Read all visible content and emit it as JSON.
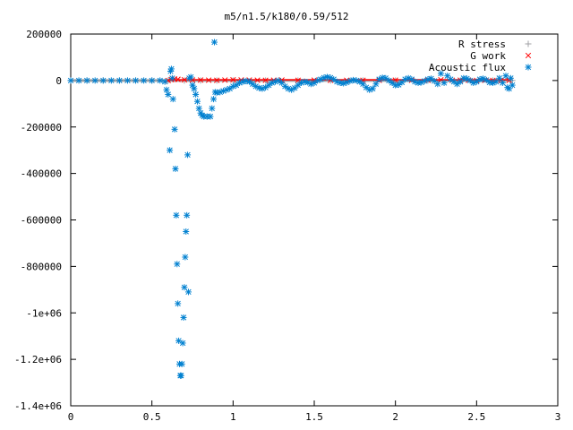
{
  "chart_data": {
    "type": "scatter",
    "title": "m5/n1.5/k180/0.59/512",
    "xlabel": "",
    "ylabel": "",
    "xlim": [
      0,
      3
    ],
    "ylim": [
      -1400000,
      200000
    ],
    "grid": false,
    "legend_position": "top-right",
    "x_ticks": [
      {
        "value": 0,
        "label": "0"
      },
      {
        "value": 0.5,
        "label": "0.5"
      },
      {
        "value": 1,
        "label": "1"
      },
      {
        "value": 1.5,
        "label": "1.5"
      },
      {
        "value": 2,
        "label": "2"
      },
      {
        "value": 2.5,
        "label": "2.5"
      },
      {
        "value": 3,
        "label": "3"
      }
    ],
    "y_ticks": [
      {
        "value": 200000,
        "label": "200000"
      },
      {
        "value": 0,
        "label": "0"
      },
      {
        "value": -200000,
        "label": "-200000"
      },
      {
        "value": -400000,
        "label": "-400000"
      },
      {
        "value": -600000,
        "label": "-600000"
      },
      {
        "value": -800000,
        "label": "-800000"
      },
      {
        "value": -1000000,
        "label": "-1e+06"
      },
      {
        "value": -1200000,
        "label": "-1.2e+06"
      },
      {
        "value": -1400000,
        "label": "-1.4e+06"
      }
    ],
    "series": [
      {
        "name": "R stress",
        "marker": "plus",
        "color": "#a0a0a4",
        "points": [
          [
            0.0,
            0
          ],
          [
            0.1,
            0
          ],
          [
            0.2,
            0
          ],
          [
            0.3,
            0
          ],
          [
            0.4,
            0
          ],
          [
            0.5,
            0
          ],
          [
            0.6,
            0
          ],
          [
            0.7,
            0
          ],
          [
            0.8,
            0
          ],
          [
            0.9,
            0
          ],
          [
            1.0,
            0
          ],
          [
            1.2,
            0
          ],
          [
            1.4,
            0
          ],
          [
            1.6,
            0
          ],
          [
            1.8,
            0
          ],
          [
            2.0,
            0
          ],
          [
            2.2,
            0
          ],
          [
            2.4,
            0
          ],
          [
            2.6,
            0
          ],
          [
            2.72,
            0
          ]
        ]
      },
      {
        "name": "G work",
        "marker": "cross",
        "color": "#ff0000",
        "points": [
          [
            0.6,
            0
          ],
          [
            0.62,
            4000
          ],
          [
            0.64,
            6000
          ],
          [
            0.66,
            5000
          ],
          [
            0.7,
            3000
          ],
          [
            0.75,
            2000
          ],
          [
            0.8,
            2000
          ],
          [
            0.85,
            1500
          ],
          [
            0.9,
            1000
          ],
          [
            0.95,
            2000
          ],
          [
            1.0,
            3000
          ],
          [
            1.05,
            2500
          ],
          [
            1.1,
            2000
          ],
          [
            1.15,
            1500
          ],
          [
            1.2,
            1000
          ],
          [
            1.25,
            1500
          ],
          [
            1.3,
            2000
          ],
          [
            1.4,
            1000
          ],
          [
            1.5,
            1500
          ],
          [
            1.6,
            1000
          ],
          [
            1.7,
            1000
          ],
          [
            1.8,
            1000
          ],
          [
            1.9,
            1000
          ],
          [
            2.0,
            1500
          ],
          [
            2.1,
            1000
          ],
          [
            2.2,
            1000
          ],
          [
            2.28,
            3000
          ],
          [
            2.35,
            1000
          ],
          [
            2.4,
            1500
          ],
          [
            2.45,
            1000
          ],
          [
            2.5,
            500
          ],
          [
            2.55,
            1000
          ],
          [
            2.6,
            500
          ],
          [
            2.65,
            500
          ],
          [
            2.7,
            500
          ]
        ]
      },
      {
        "name": "Acoustic flux",
        "marker": "star",
        "color": "#0080d0",
        "points": [
          [
            0.0,
            0
          ],
          [
            0.05,
            0
          ],
          [
            0.1,
            0
          ],
          [
            0.15,
            0
          ],
          [
            0.2,
            0
          ],
          [
            0.25,
            0
          ],
          [
            0.3,
            0
          ],
          [
            0.35,
            0
          ],
          [
            0.4,
            0
          ],
          [
            0.45,
            0
          ],
          [
            0.5,
            0
          ],
          [
            0.55,
            0
          ],
          [
            0.58,
            -5000
          ],
          [
            0.59,
            -40000
          ],
          [
            0.6,
            -60000
          ],
          [
            0.61,
            -300000
          ],
          [
            0.615,
            40000
          ],
          [
            0.62,
            50000
          ],
          [
            0.625,
            10000
          ],
          [
            0.63,
            -80000
          ],
          [
            0.64,
            -210000
          ],
          [
            0.645,
            -380000
          ],
          [
            0.65,
            -580000
          ],
          [
            0.655,
            -790000
          ],
          [
            0.66,
            -960000
          ],
          [
            0.665,
            -1120000
          ],
          [
            0.67,
            -1220000
          ],
          [
            0.675,
            -1270000
          ],
          [
            0.68,
            -1270000
          ],
          [
            0.685,
            -1220000
          ],
          [
            0.69,
            -1130000
          ],
          [
            0.695,
            -1020000
          ],
          [
            0.7,
            -890000
          ],
          [
            0.705,
            -760000
          ],
          [
            0.71,
            -650000
          ],
          [
            0.715,
            -580000
          ],
          [
            0.72,
            -320000
          ],
          [
            0.725,
            -910000
          ],
          [
            0.73,
            10000
          ],
          [
            0.74,
            15000
          ],
          [
            0.75,
            -20000
          ],
          [
            0.76,
            -35000
          ],
          [
            0.77,
            -60000
          ],
          [
            0.78,
            -90000
          ],
          [
            0.79,
            -120000
          ],
          [
            0.8,
            -140000
          ],
          [
            0.81,
            -150000
          ],
          [
            0.82,
            -155000
          ],
          [
            0.84,
            -155000
          ],
          [
            0.86,
            -155000
          ],
          [
            0.87,
            -120000
          ],
          [
            0.88,
            -80000
          ],
          [
            0.885,
            165000
          ],
          [
            0.89,
            -50000
          ],
          [
            0.9,
            -52000
          ],
          [
            0.92,
            -50000
          ],
          [
            0.94,
            -45000
          ],
          [
            0.96,
            -40000
          ],
          [
            0.98,
            -35000
          ],
          [
            1.0,
            -25000
          ],
          [
            1.02,
            -20000
          ],
          [
            1.04,
            -10000
          ],
          [
            1.06,
            -5000
          ],
          [
            1.08,
            -2000
          ],
          [
            1.1,
            -5000
          ],
          [
            1.12,
            -15000
          ],
          [
            1.14,
            -25000
          ],
          [
            1.16,
            -32000
          ],
          [
            1.18,
            -35000
          ],
          [
            1.2,
            -30000
          ],
          [
            1.22,
            -20000
          ],
          [
            1.24,
            -10000
          ],
          [
            1.26,
            -5000
          ],
          [
            1.28,
            0
          ],
          [
            1.3,
            -10000
          ],
          [
            1.32,
            -25000
          ],
          [
            1.34,
            -35000
          ],
          [
            1.36,
            -40000
          ],
          [
            1.38,
            -32000
          ],
          [
            1.4,
            -20000
          ],
          [
            1.42,
            -10000
          ],
          [
            1.44,
            -5000
          ],
          [
            1.46,
            -8000
          ],
          [
            1.48,
            -15000
          ],
          [
            1.5,
            -10000
          ],
          [
            1.52,
            0
          ],
          [
            1.54,
            5000
          ],
          [
            1.56,
            12000
          ],
          [
            1.58,
            15000
          ],
          [
            1.6,
            12000
          ],
          [
            1.62,
            5000
          ],
          [
            1.64,
            -5000
          ],
          [
            1.66,
            -10000
          ],
          [
            1.68,
            -12000
          ],
          [
            1.7,
            -8000
          ],
          [
            1.72,
            -2000
          ],
          [
            1.74,
            2000
          ],
          [
            1.76,
            0
          ],
          [
            1.78,
            -5000
          ],
          [
            1.8,
            -15000
          ],
          [
            1.82,
            -30000
          ],
          [
            1.84,
            -40000
          ],
          [
            1.86,
            -35000
          ],
          [
            1.88,
            -15000
          ],
          [
            1.9,
            5000
          ],
          [
            1.92,
            12000
          ],
          [
            1.94,
            10000
          ],
          [
            1.96,
            0
          ],
          [
            1.98,
            -10000
          ],
          [
            2.0,
            -20000
          ],
          [
            2.02,
            -18000
          ],
          [
            2.04,
            -8000
          ],
          [
            2.06,
            5000
          ],
          [
            2.08,
            10000
          ],
          [
            2.1,
            5000
          ],
          [
            2.12,
            -5000
          ],
          [
            2.14,
            -10000
          ],
          [
            2.16,
            -8000
          ],
          [
            2.18,
            -2000
          ],
          [
            2.2,
            5000
          ],
          [
            2.22,
            8000
          ],
          [
            2.24,
            -2000
          ],
          [
            2.26,
            -15000
          ],
          [
            2.28,
            30000
          ],
          [
            2.3,
            -10000
          ],
          [
            2.32,
            20000
          ],
          [
            2.34,
            5000
          ],
          [
            2.36,
            -5000
          ],
          [
            2.38,
            -15000
          ],
          [
            2.4,
            -5000
          ],
          [
            2.42,
            10000
          ],
          [
            2.44,
            8000
          ],
          [
            2.46,
            0
          ],
          [
            2.48,
            -10000
          ],
          [
            2.5,
            -5000
          ],
          [
            2.52,
            5000
          ],
          [
            2.54,
            8000
          ],
          [
            2.56,
            2000
          ],
          [
            2.58,
            -8000
          ],
          [
            2.6,
            -10000
          ],
          [
            2.62,
            -5000
          ],
          [
            2.64,
            10000
          ],
          [
            2.66,
            -10000
          ],
          [
            2.68,
            20000
          ],
          [
            2.69,
            -30000
          ],
          [
            2.7,
            -35000
          ],
          [
            2.71,
            10000
          ],
          [
            2.72,
            -20000
          ]
        ]
      }
    ]
  }
}
